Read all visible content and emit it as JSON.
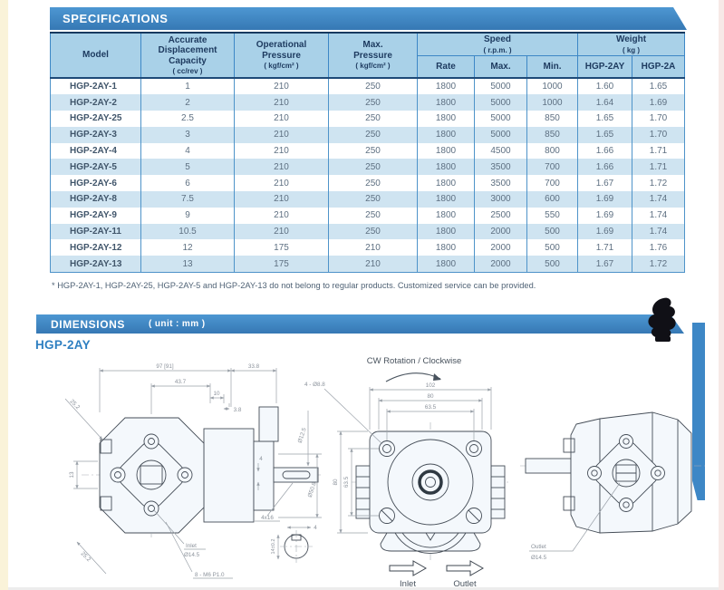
{
  "spec": {
    "banner": "SPECIFICATIONS",
    "footnote": "* HGP-2AY-1, HGP-2AY-25, HGP-2AY-5 and HGP-2AY-13 do not belong to regular products.  Customized service can be provided.",
    "table": {
      "headers": {
        "model": "Model",
        "capacity": "Accurate\nDisplacement\nCapacity",
        "capacity_unit": "( cc/rev )",
        "op_pressure": "Operational\nPressure",
        "op_pressure_unit": "( kgf/cm² )",
        "max_pressure": "Max.\nPressure",
        "max_pressure_unit": "( kgf/cm² )",
        "speed": "Speed",
        "speed_unit": "( r.p.m. )",
        "weight": "Weight",
        "weight_unit": "( kg )",
        "rate": "Rate",
        "max": "Max.",
        "min": "Min.",
        "hgp_2ay": "HGP-2AY",
        "hgp_2a": "HGP-2A"
      },
      "rows": [
        [
          "HGP-2AY-1",
          "1",
          "210",
          "250",
          "1800",
          "5000",
          "1000",
          "1.60",
          "1.65"
        ],
        [
          "HGP-2AY-2",
          "2",
          "210",
          "250",
          "1800",
          "5000",
          "1000",
          "1.64",
          "1.69"
        ],
        [
          "HGP-2AY-25",
          "2.5",
          "210",
          "250",
          "1800",
          "5000",
          "850",
          "1.65",
          "1.70"
        ],
        [
          "HGP-2AY-3",
          "3",
          "210",
          "250",
          "1800",
          "5000",
          "850",
          "1.65",
          "1.70"
        ],
        [
          "HGP-2AY-4",
          "4",
          "210",
          "250",
          "1800",
          "4500",
          "800",
          "1.66",
          "1.71"
        ],
        [
          "HGP-2AY-5",
          "5",
          "210",
          "250",
          "1800",
          "3500",
          "700",
          "1.66",
          "1.71"
        ],
        [
          "HGP-2AY-6",
          "6",
          "210",
          "250",
          "1800",
          "3500",
          "700",
          "1.67",
          "1.72"
        ],
        [
          "HGP-2AY-8",
          "7.5",
          "210",
          "250",
          "1800",
          "3000",
          "600",
          "1.69",
          "1.74"
        ],
        [
          "HGP-2AY-9",
          "9",
          "210",
          "250",
          "1800",
          "2500",
          "550",
          "1.69",
          "1.74"
        ],
        [
          "HGP-2AY-11",
          "10.5",
          "210",
          "250",
          "1800",
          "2000",
          "500",
          "1.69",
          "1.74"
        ],
        [
          "HGP-2AY-12",
          "12",
          "175",
          "210",
          "1800",
          "2000",
          "500",
          "1.71",
          "1.76"
        ],
        [
          "HGP-2AY-13",
          "13",
          "175",
          "210",
          "1800",
          "2000",
          "500",
          "1.67",
          "1.72"
        ]
      ]
    }
  },
  "dimensions": {
    "banner": "DIMENSIONS",
    "unit": "( unit : mm )",
    "model": "HGP-2AY",
    "view1": {
      "dim97": "97 [91]",
      "dim338": "33.8",
      "dim437": "43.7",
      "dim10": "10",
      "dim38": "3.8",
      "dim252_top": "25.2",
      "dim13": "13",
      "dia125": "Ø12.5",
      "dia508": "Ø50.8",
      "dim4_key": "4",
      "dim4x16": "4x16",
      "inlet1": "Inlet",
      "inlet2": "Ø14.5",
      "dimM6": "8 - M6 P1.0",
      "dim252_bottom": "25.2",
      "detail14": "14±0.2",
      "detail4": "4"
    },
    "view2": {
      "cw": "CW Rotation / Clockwise",
      "dim102": "102",
      "dim80_top": "80",
      "dim635_top": "63.5",
      "dim80_left": "80",
      "dim635_left": "63.5",
      "bolt": "4 - Ø8.8",
      "inlet": "Inlet",
      "outlet": "Outlet"
    },
    "view3": {
      "outlet1": "Outlet",
      "outlet2": "Ø14.5"
    }
  }
}
